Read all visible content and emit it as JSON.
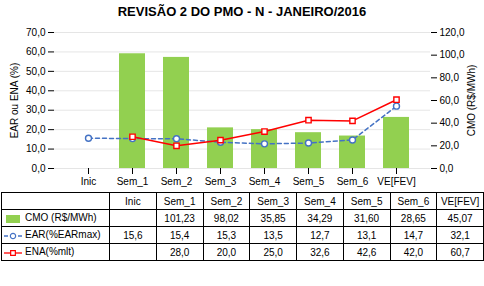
{
  "chart_data": {
    "type": "bar",
    "title": "REVISÃO 2 DO PMO - N - JANEIRO/2016",
    "categories": [
      "Inic",
      "Sem_1",
      "Sem_2",
      "Sem_3",
      "Sem_4",
      "Sem_5",
      "Sem_6",
      "VE[FEV]"
    ],
    "series": [
      {
        "name": "CMO (R$/MWh)",
        "type": "bar",
        "axis": "y2",
        "color": "#92d050",
        "values": [
          null,
          101.23,
          98.02,
          35.85,
          34.29,
          31.6,
          28.65,
          45.07
        ],
        "value_labels": [
          null,
          "101,23",
          "98,02",
          "35,85",
          "34,29",
          "31,60",
          "28,65",
          "45,07"
        ]
      },
      {
        "name": "EAR(%EARmax)",
        "type": "line",
        "axis": "y",
        "color": "#4472c4",
        "marker": "circle",
        "line_style": "dashed",
        "values": [
          15.6,
          15.4,
          15.3,
          13.5,
          12.7,
          13.1,
          14.7,
          32.1
        ],
        "value_labels": [
          "15,6",
          "15,4",
          "15,3",
          "13,5",
          "12,7",
          "13,1",
          "14,7",
          "32,1"
        ]
      },
      {
        "name": "ENA(%mlt)",
        "type": "line",
        "axis": "y2",
        "color": "#ff0000",
        "marker": "square",
        "line_style": "solid",
        "values": [
          null,
          28.0,
          20.0,
          25.0,
          32.6,
          42.6,
          42.0,
          60.7
        ],
        "value_labels": [
          null,
          "28,0",
          "20,0",
          "25,0",
          "32,6",
          "42,6",
          "42,0",
          "60,7"
        ]
      }
    ],
    "ylabel": "EAR ou ENA (%)",
    "y2label": "CMO (R$/MWh)",
    "ylim": [
      0,
      70
    ],
    "yticks": [
      {
        "value": 0,
        "label": "0,0"
      },
      {
        "value": 10,
        "label": "10,0"
      },
      {
        "value": 20,
        "label": "20,0"
      },
      {
        "value": 30,
        "label": "30,0"
      },
      {
        "value": 40,
        "label": "40,0"
      },
      {
        "value": 50,
        "label": "50,0"
      },
      {
        "value": 60,
        "label": "60,0"
      },
      {
        "value": 70,
        "label": "70,0"
      }
    ],
    "y2lim": [
      0,
      120
    ],
    "y2ticks": [
      {
        "value": 0,
        "label": "0,0"
      },
      {
        "value": 20,
        "label": "20,0"
      },
      {
        "value": 40,
        "label": "40,0"
      },
      {
        "value": 60,
        "label": "60,0"
      },
      {
        "value": 80,
        "label": "80,0"
      },
      {
        "value": 100,
        "label": "100,0"
      },
      {
        "value": 120,
        "label": "120,0"
      }
    ],
    "grid": true,
    "data_labels": true
  }
}
